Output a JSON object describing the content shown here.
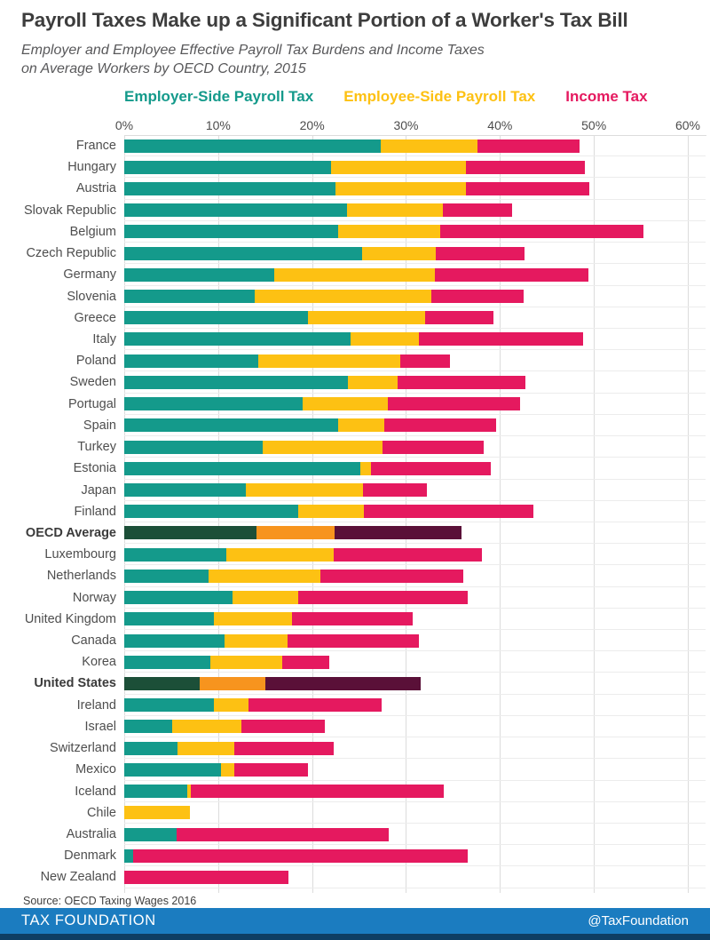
{
  "header": {
    "title": "Payroll Taxes Make up a Significant Portion of a Worker's Tax Bill",
    "subtitle_line1": "Employer and Employee Effective Payroll Tax Burdens and Income Taxes",
    "subtitle_line2": "on Average Workers by OECD Country, 2015"
  },
  "legend": [
    {
      "label": "Employer-Side Payroll Tax",
      "color": "#149a8b"
    },
    {
      "label": "Employee-Side Payroll Tax",
      "color": "#fdc113"
    },
    {
      "label": "Income Tax",
      "color": "#e5195f"
    }
  ],
  "axis": {
    "ticks": [
      "0%",
      "10%",
      "20%",
      "30%",
      "40%",
      "50%",
      "60%"
    ],
    "min": 0,
    "max": 60
  },
  "colors": {
    "normal": {
      "employer": "#149a8b",
      "employee": "#fdc113",
      "income": "#e5195f"
    },
    "dark": {
      "employer": "#1c4f38",
      "employee": "#f7941e",
      "income": "#5a1038"
    },
    "footer_blue": "#1b7cc0",
    "footer_strip": "#0e3e63"
  },
  "chart_data": {
    "type": "bar",
    "orientation": "horizontal",
    "stacked": true,
    "unit": "percent of labor cost",
    "title": "Payroll Taxes Make up a Significant Portion of a Worker's Tax Bill",
    "subtitle": "Employer and Employee Effective Payroll Tax Burdens and Income Taxes on Average Workers by OECD Country, 2015",
    "xlabel": "",
    "ylabel": "",
    "xlim": [
      0,
      60
    ],
    "grid": "vertical",
    "legend_position": "top",
    "series_names": [
      "Employer-Side Payroll Tax",
      "Employee-Side Payroll Tax",
      "Income Tax"
    ],
    "rows": [
      {
        "country": "France",
        "employer": 27.3,
        "employee": 10.3,
        "income": 10.9,
        "emphasis": false
      },
      {
        "country": "Hungary",
        "employer": 22.0,
        "employee": 14.4,
        "income": 12.6,
        "emphasis": false
      },
      {
        "country": "Austria",
        "employer": 22.5,
        "employee": 13.9,
        "income": 13.1,
        "emphasis": false
      },
      {
        "country": "Slovak Republic",
        "employer": 23.7,
        "employee": 10.2,
        "income": 7.4,
        "emphasis": false
      },
      {
        "country": "Belgium",
        "employer": 22.8,
        "employee": 10.8,
        "income": 21.7,
        "emphasis": false
      },
      {
        "country": "Czech Republic",
        "employer": 25.3,
        "employee": 7.9,
        "income": 9.4,
        "emphasis": false
      },
      {
        "country": "Germany",
        "employer": 16.0,
        "employee": 17.1,
        "income": 16.3,
        "emphasis": false
      },
      {
        "country": "Slovenia",
        "employer": 13.9,
        "employee": 18.8,
        "income": 9.8,
        "emphasis": false
      },
      {
        "country": "Greece",
        "employer": 19.6,
        "employee": 12.4,
        "income": 7.3,
        "emphasis": false
      },
      {
        "country": "Italy",
        "employer": 24.1,
        "employee": 7.3,
        "income": 17.5,
        "emphasis": false
      },
      {
        "country": "Poland",
        "employer": 14.3,
        "employee": 15.1,
        "income": 5.3,
        "emphasis": false
      },
      {
        "country": "Sweden",
        "employer": 23.8,
        "employee": 5.3,
        "income": 13.6,
        "emphasis": false
      },
      {
        "country": "Portugal",
        "employer": 19.0,
        "employee": 9.1,
        "income": 14.0,
        "emphasis": false
      },
      {
        "country": "Spain",
        "employer": 22.8,
        "employee": 4.9,
        "income": 11.9,
        "emphasis": false
      },
      {
        "country": "Turkey",
        "employer": 14.7,
        "employee": 12.8,
        "income": 10.8,
        "emphasis": false
      },
      {
        "country": "Estonia",
        "employer": 25.1,
        "employee": 1.2,
        "income": 12.7,
        "emphasis": false
      },
      {
        "country": "Japan",
        "employer": 12.9,
        "employee": 12.5,
        "income": 6.8,
        "emphasis": false
      },
      {
        "country": "Finland",
        "employer": 18.5,
        "employee": 7.0,
        "income": 18.1,
        "emphasis": false
      },
      {
        "country": "OECD Average",
        "employer": 14.1,
        "employee": 8.3,
        "income": 13.5,
        "emphasis": true
      },
      {
        "country": "Luxembourg",
        "employer": 10.9,
        "employee": 11.4,
        "income": 15.8,
        "emphasis": false
      },
      {
        "country": "Netherlands",
        "employer": 9.0,
        "employee": 11.9,
        "income": 15.2,
        "emphasis": false
      },
      {
        "country": "Norway",
        "employer": 11.5,
        "employee": 7.0,
        "income": 18.1,
        "emphasis": false
      },
      {
        "country": "United Kingdom",
        "employer": 9.5,
        "employee": 8.4,
        "income": 12.8,
        "emphasis": false
      },
      {
        "country": "Canada",
        "employer": 10.7,
        "employee": 6.7,
        "income": 14.0,
        "emphasis": false
      },
      {
        "country": "Korea",
        "employer": 9.2,
        "employee": 7.6,
        "income": 5.0,
        "emphasis": false
      },
      {
        "country": "United States",
        "employer": 8.0,
        "employee": 7.0,
        "income": 16.6,
        "emphasis": true
      },
      {
        "country": "Ireland",
        "employer": 9.5,
        "employee": 3.7,
        "income": 14.2,
        "emphasis": false
      },
      {
        "country": "Israel",
        "employer": 5.1,
        "employee": 7.4,
        "income": 8.9,
        "emphasis": false
      },
      {
        "country": "Switzerland",
        "employer": 5.7,
        "employee": 6.0,
        "income": 10.6,
        "emphasis": false
      },
      {
        "country": "Mexico",
        "employer": 10.3,
        "employee": 1.4,
        "income": 7.9,
        "emphasis": false
      },
      {
        "country": "Iceland",
        "employer": 6.7,
        "employee": 0.4,
        "income": 26.9,
        "emphasis": false
      },
      {
        "country": "Chile",
        "employer": 0.0,
        "employee": 7.0,
        "income": 0.0,
        "emphasis": false
      },
      {
        "country": "Australia",
        "employer": 5.6,
        "employee": 0.0,
        "income": 22.6,
        "emphasis": false
      },
      {
        "country": "Denmark",
        "employer": 0.9,
        "employee": 0.0,
        "income": 35.7,
        "emphasis": false
      },
      {
        "country": "New Zealand",
        "employer": 0.0,
        "employee": 0.0,
        "income": 17.5,
        "emphasis": false
      }
    ]
  },
  "source": "Source: OECD Taxing Wages 2016",
  "footer": {
    "brand": "TAX FOUNDATION",
    "handle": "@TaxFoundation"
  }
}
